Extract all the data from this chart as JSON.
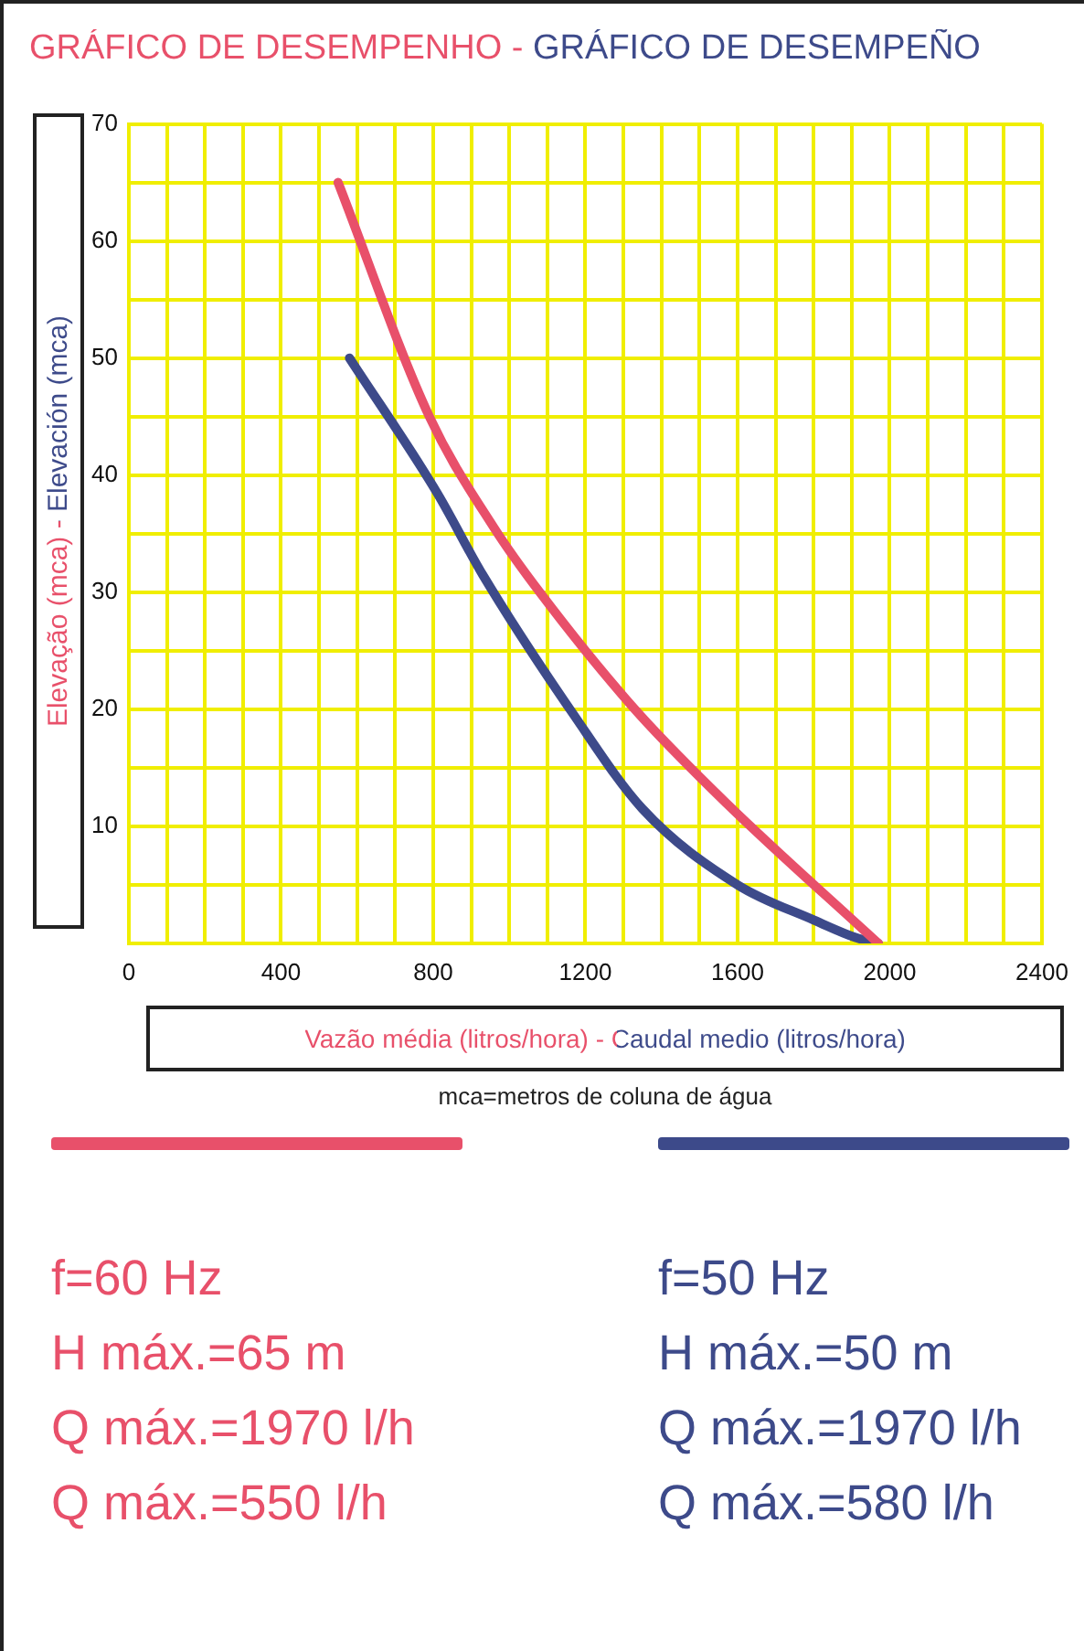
{
  "chart_data": {
    "type": "line",
    "title": "GRÁFICO DE DESEMPENHO - GRÁFICO DE DESEMPEÑO",
    "xlabel": "Vazão média (litros/hora) - Caudal medio (litros/hora)",
    "ylabel": "Elevação (mca) - Elevación (mca)",
    "xlim": [
      0,
      2400
    ],
    "ylim": [
      0,
      70
    ],
    "xticks": [
      0,
      {
        "value": 100,
        "label": null
      },
      {
        "value": 200,
        "label": null
      },
      {
        "value": 300,
        "label": null
      },
      400,
      {
        "value": 500,
        "label": null
      },
      {
        "value": 600,
        "label": null
      },
      {
        "value": 700,
        "label": null
      },
      800,
      {
        "value": 900,
        "label": null
      },
      {
        "value": 1000,
        "label": null
      },
      {
        "value": 1100,
        "label": null
      },
      1200,
      {
        "value": 1300,
        "label": null
      },
      {
        "value": 1400,
        "label": null
      },
      {
        "value": 1500,
        "label": null
      },
      1600,
      {
        "value": 1700,
        "label": null
      },
      {
        "value": 1800,
        "label": null
      },
      {
        "value": 1900,
        "label": null
      },
      2000,
      {
        "value": 2100,
        "label": null
      },
      {
        "value": 2200,
        "label": null
      },
      {
        "value": 2300,
        "label": null
      },
      2400
    ],
    "yticks": [
      {
        "value": 0,
        "label": null
      },
      {
        "value": 5,
        "label": null
      },
      10,
      {
        "value": 15,
        "label": null
      },
      20,
      {
        "value": 25,
        "label": null
      },
      30,
      {
        "value": 35,
        "label": null
      },
      40,
      {
        "value": 45,
        "label": null
      },
      50,
      {
        "value": 55,
        "label": null
      },
      60,
      {
        "value": 65,
        "label": null
      },
      70
    ],
    "grid": true,
    "marker": "none",
    "line_style": "solid",
    "legend": "bottom",
    "series": [
      {
        "name": "f=60 Hz",
        "color": "#e8506a",
        "x": [
          550,
          790,
          960,
          1080,
          1330,
          1570,
          1970
        ],
        "values": [
          65,
          45,
          35.5,
          30,
          20,
          12,
          0
        ]
      },
      {
        "name": "f=50 Hz",
        "color": "#3d4a8a",
        "x": [
          580,
          810,
          930,
          1170,
          1350,
          1600,
          1800,
          1910,
          1970
        ],
        "values": [
          50,
          38.5,
          31.5,
          19.5,
          11.5,
          5,
          2,
          0.5,
          0
        ]
      }
    ],
    "annotations": [
      "mca=metros de coluna de água",
      "H máx.=65 m",
      "Q máx.=1970 l/h",
      "Q máx.=550 l/h",
      "H máx.=50 m",
      "Q máx.=1970 l/h",
      "Q máx.=580 l/h"
    ]
  }
}
